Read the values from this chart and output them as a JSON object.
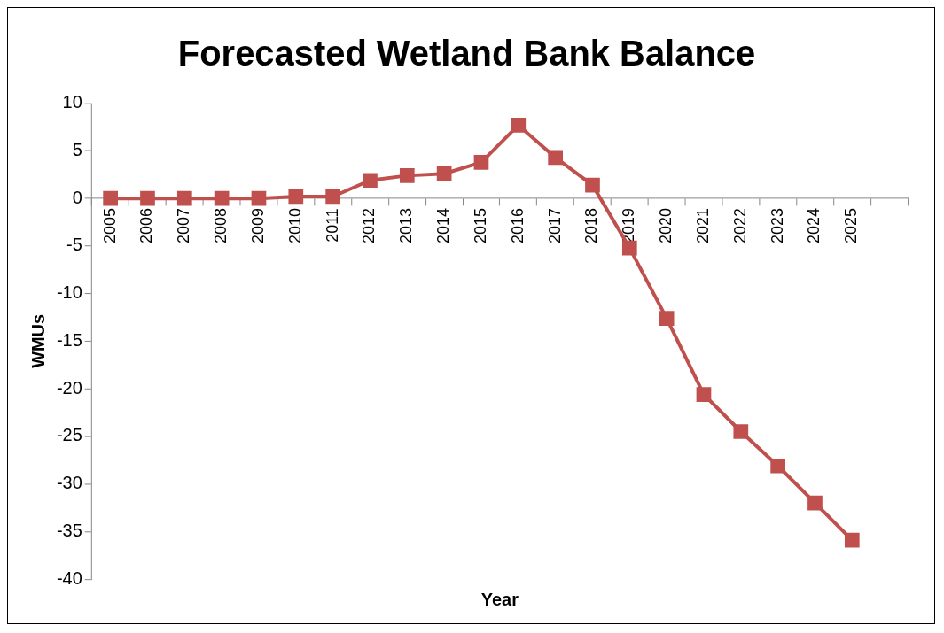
{
  "chart_data": {
    "type": "line",
    "title": "Forecasted Wetland Bank Balance",
    "xlabel": "Year",
    "ylabel": "WMUs",
    "categories": [
      "2005",
      "2006",
      "2007",
      "2008",
      "2009",
      "2010",
      "2011",
      "2012",
      "2013",
      "2014",
      "2015",
      "2016",
      "2017",
      "2018",
      "2019",
      "2020",
      "2021",
      "2022",
      "2023",
      "2024",
      "2025",
      null
    ],
    "series": [
      {
        "color": "#c0504d",
        "values": [
          0,
          0,
          0,
          0,
          0,
          0.2,
          0.2,
          1.9,
          2.4,
          2.6,
          3.8,
          7.7,
          4.3,
          1.4,
          -5.2,
          -12.6,
          -20.6,
          -24.5,
          -28.1,
          -32,
          -35.9,
          null
        ]
      }
    ],
    "ylim": [
      -40,
      10
    ],
    "yticks": [
      -40,
      -35,
      -30,
      -25,
      -20,
      -15,
      -10,
      -5,
      0,
      5,
      10
    ],
    "marker": "square",
    "line_style": "solid",
    "legend": false
  }
}
